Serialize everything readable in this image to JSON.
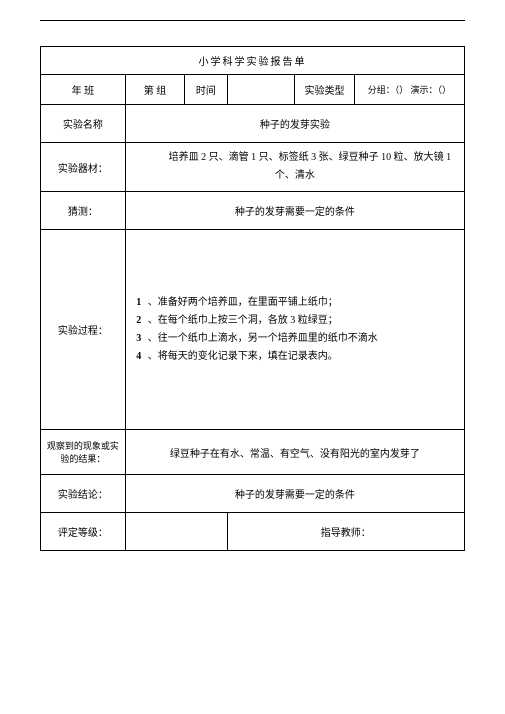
{
  "title": "小学科学实验报告单",
  "row1": {
    "year_class": "年        班",
    "group": "第        组",
    "time_label": "时间",
    "time_value": "",
    "type_label": "实验类型",
    "type_value": "分组：（） 演示：（）"
  },
  "name_row": {
    "label": "实验名称",
    "value": "种子的发芽实验"
  },
  "materials_row": {
    "label": "实验器材：",
    "value": "培养皿 2 只、滴管 1 只、标签纸 3 张、绿豆种子 10 粒、放大镜 1 个、清水"
  },
  "guess_row": {
    "label": "猜测：",
    "value": "种子的发芽需要一定的条件"
  },
  "process_row": {
    "label": "实验过程：",
    "steps": [
      {
        "num": "1",
        "text": "、准备好两个培养皿，在里面平铺上纸巾；"
      },
      {
        "num": "2",
        "text": "、在每个纸巾上按三个洞，各放 3 粒绿豆；"
      },
      {
        "num": "3",
        "text": "、往一个纸巾上滴水，另一个培养皿里的纸巾不滴水"
      },
      {
        "num": "4",
        "text": "、将每天的变化记录下来，填在记录表内。"
      }
    ]
  },
  "observation_row": {
    "label": "观察到的现象或实验的结果：",
    "value": "绿豆种子在有水、常温、有空气、没有阳光的室内发芽了"
  },
  "conclusion_row": {
    "label": "实验结论：",
    "value": "种子的发芽需要一定的条件"
  },
  "grade_row": {
    "label": "评定等级：",
    "teacher_label": "指导教师："
  }
}
